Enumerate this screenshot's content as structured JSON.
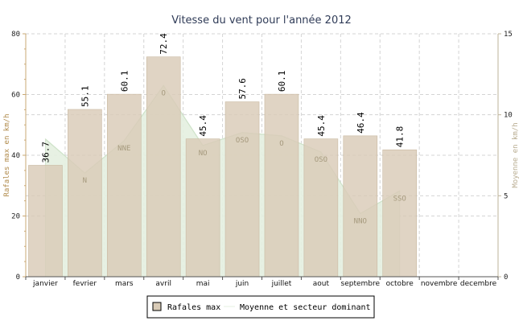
{
  "chart_data": {
    "type": "bar",
    "title": "Vitesse du vent pour l'année 2012",
    "categories": [
      "janvier",
      "fevrier",
      "mars",
      "avril",
      "mai",
      "juin",
      "juillet",
      "aout",
      "septembre",
      "octobre",
      "novembre",
      "decembre"
    ],
    "ylabel": "Rafales max en km/h",
    "y2label": "Moyenne en km/h",
    "ylim": [
      0,
      80
    ],
    "yticks": [
      "0",
      "20",
      "40",
      "60",
      "80"
    ],
    "y2lim": [
      0,
      15
    ],
    "y2ticks": [
      "0",
      "5",
      "10",
      "15"
    ],
    "grid": true,
    "series": [
      {
        "name": "Rafales max",
        "type": "bar",
        "axis": "left",
        "color": "#d9cbb7",
        "values": [
          36.7,
          55.1,
          60.1,
          72.4,
          45.4,
          57.6,
          60.1,
          45.4,
          46.4,
          41.8,
          null,
          null
        ],
        "labels": [
          "36.7",
          "55.1",
          "60.1",
          "72.4",
          "45.4",
          "57.6",
          "60.1",
          "45.4",
          "46.4",
          "41.8",
          "",
          ""
        ]
      },
      {
        "name": "Moyenne et secteur dominant",
        "type": "area",
        "axis": "right",
        "color": "#e4f0e0",
        "values": [
          8.5,
          6.4,
          8.4,
          11.8,
          8.1,
          8.9,
          8.7,
          7.7,
          3.9,
          5.3,
          null,
          null
        ],
        "directions": [
          "",
          "N",
          "NNE",
          "O",
          "NO",
          "OSO",
          "O",
          "OSO",
          "NNO",
          "SSO",
          "",
          ""
        ]
      }
    ],
    "legend": {
      "position": "bottom",
      "items": [
        {
          "label": "Rafales max",
          "symbol": "box",
          "color": "#d9cbb7"
        },
        {
          "label": "Moyenne et secteur dominant",
          "symbol": "line",
          "color": "#e4f0e0"
        }
      ]
    }
  }
}
